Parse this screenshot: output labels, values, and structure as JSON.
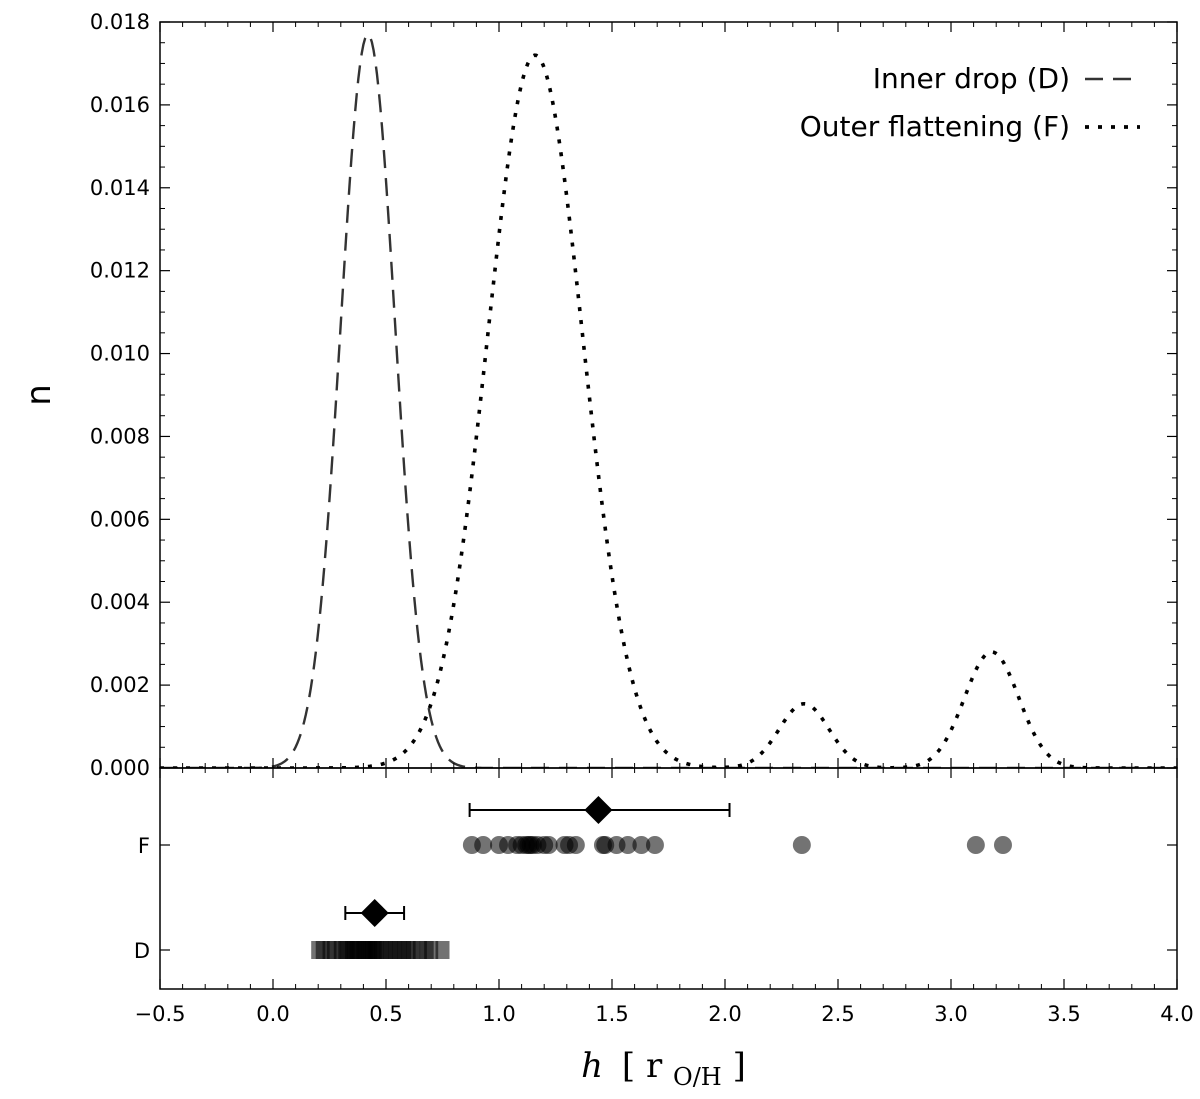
{
  "chart_data": {
    "type": "line",
    "title": "",
    "xlabel": "h",
    "xlabel_unit": "r",
    "xlabel_unit_sub": "O/H",
    "ylabel": "n",
    "xlim": [
      -0.5,
      4.0
    ],
    "ylim": [
      0,
      0.018
    ],
    "x_ticks": [
      -0.5,
      0.0,
      0.5,
      1.0,
      1.5,
      2.0,
      2.5,
      3.0,
      3.5,
      4.0
    ],
    "x_tick_labels": [
      "−0.5",
      "0.0",
      "0.5",
      "1.0",
      "1.5",
      "2.0",
      "2.5",
      "3.0",
      "3.5",
      "4.0"
    ],
    "y_ticks": [
      0,
      0.002,
      0.004,
      0.006,
      0.008,
      0.01,
      0.012,
      0.014,
      0.016,
      0.018
    ],
    "y_tick_labels": [
      "0.000",
      "0.002",
      "0.004",
      "0.006",
      "0.008",
      "0.010",
      "0.012",
      "0.014",
      "0.016",
      "0.018"
    ],
    "grid": false,
    "legend_position": "top-right",
    "series": [
      {
        "name": "Inner drop (D)",
        "style": "dashed",
        "color": "#333333",
        "components": [
          {
            "mu": 0.42,
            "sigma": 0.12,
            "amp": 0.0177
          }
        ]
      },
      {
        "name": "Outer flattening (F)",
        "style": "dotted",
        "color": "#000000",
        "components": [
          {
            "mu": 1.16,
            "sigma": 0.21,
            "amp": 0.0172
          },
          {
            "mu": 2.35,
            "sigma": 0.11,
            "amp": 0.00155
          },
          {
            "mu": 3.18,
            "sigma": 0.12,
            "amp": 0.0028
          }
        ]
      }
    ],
    "lower_panel": {
      "y_categories": [
        "F",
        "D"
      ],
      "F": {
        "points": [
          0.88,
          0.93,
          1.0,
          1.04,
          1.08,
          1.1,
          1.12,
          1.13,
          1.14,
          1.15,
          1.17,
          1.2,
          1.22,
          1.29,
          1.31,
          1.34,
          1.46,
          1.47,
          1.52,
          1.57,
          1.63,
          1.69,
          2.34,
          3.11,
          3.23
        ],
        "marker": "circle",
        "mean": 1.44,
        "error_low": 0.87,
        "error_high": 2.02
      },
      "D": {
        "points": [
          0.2,
          0.22,
          0.25,
          0.27,
          0.3,
          0.32,
          0.33,
          0.35,
          0.36,
          0.37,
          0.38,
          0.4,
          0.41,
          0.42,
          0.43,
          0.44,
          0.45,
          0.46,
          0.48,
          0.5,
          0.52,
          0.54,
          0.56,
          0.58,
          0.6,
          0.62,
          0.65,
          0.68,
          0.7,
          0.75
        ],
        "marker": "square",
        "mean": 0.45,
        "error_low": 0.32,
        "error_high": 0.58
      }
    }
  }
}
